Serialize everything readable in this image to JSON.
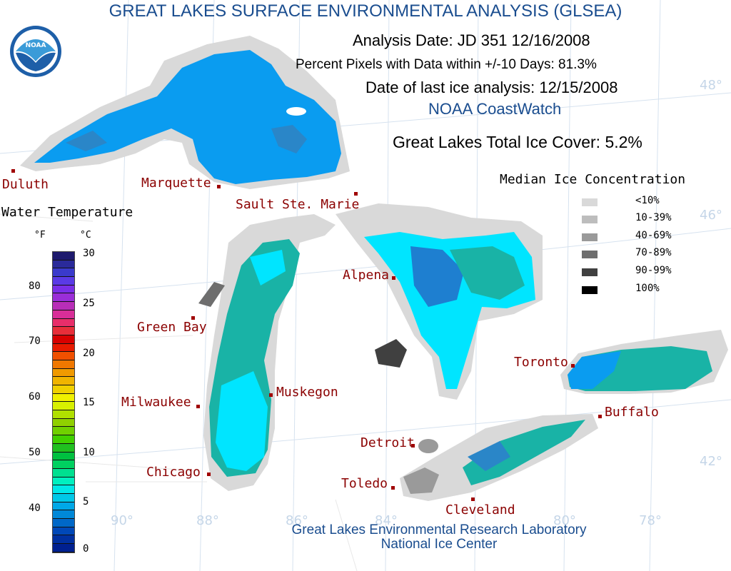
{
  "title": "GREAT LAKES SURFACE ENVIRONMENTAL ANALYSIS (GLSEA)",
  "analysis_date": "Analysis Date:  JD 351 12/16/2008",
  "percent_pixels": "Percent Pixels with Data within +/-10 Days:  81.3%",
  "last_ice": "Date of last ice analysis: 12/15/2008",
  "coastwatch": "NOAA CoastWatch",
  "total_ice": "Great Lakes Total Ice Cover:   5.2%",
  "logo_text": "NOAA",
  "water_temp_title": "Water Temperature",
  "unit_f": "°F",
  "unit_c": "°C",
  "f_ticks": [
    "80",
    "70",
    "60",
    "50",
    "40"
  ],
  "c_ticks": [
    "30",
    "25",
    "20",
    "15",
    "10",
    "5",
    "0"
  ],
  "ice_legend": {
    "title": "Median Ice Concentration",
    "items": [
      {
        "label": "<10%",
        "color": "#d9d9d9"
      },
      {
        "label": "10-39%",
        "color": "#bdbdbd"
      },
      {
        "label": "40-69%",
        "color": "#9a9a9a"
      },
      {
        "label": "70-89%",
        "color": "#6e6e6e"
      },
      {
        "label": "90-99%",
        "color": "#404040"
      },
      {
        "label": "100%",
        "color": "#000000"
      }
    ]
  },
  "cities": {
    "duluth": "Duluth",
    "marquette": "Marquette",
    "sault": "Sault Ste. Marie",
    "green_bay": "Green Bay",
    "milwaukee": "Milwaukee",
    "chicago": "Chicago",
    "muskegon": "Muskegon",
    "alpena": "Alpena",
    "detroit": "Detroit",
    "toledo": "Toledo",
    "cleveland": "Cleveland",
    "toronto": "Toronto",
    "buffalo": "Buffalo"
  },
  "lat_labels": [
    "48°",
    "46°",
    "42°"
  ],
  "lon_labels": [
    "90°",
    "88°",
    "86°",
    "84°",
    "80°",
    "78°"
  ],
  "footer_line1": "Great Lakes Environmental Research Laboratory",
  "footer_line2": "National Ice Center",
  "colors": {
    "water_deep_blue": "#0a9cf0",
    "water_cyan": "#00e5ff",
    "water_teal": "#19b3a6",
    "land": "#ffffff",
    "shelf_ice": "#d9d9d9"
  }
}
